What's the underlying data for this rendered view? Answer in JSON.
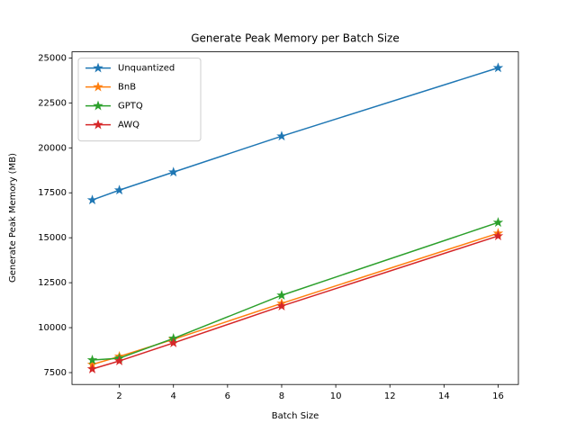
{
  "chart_data": {
    "type": "line",
    "title": "Generate Peak Memory per Batch Size",
    "x_label": "Batch Size",
    "y_label": "Generate Peak Memory (MB)",
    "x": [
      1,
      2,
      4,
      8,
      16
    ],
    "series": [
      {
        "name": "Unquantized",
        "color": "#1f77b4",
        "values": [
          17100,
          17650,
          18650,
          20650,
          24450
        ]
      },
      {
        "name": "BnB",
        "color": "#ff7f0e",
        "values": [
          7950,
          8400,
          9350,
          11350,
          15250
        ]
      },
      {
        "name": "GPTQ",
        "color": "#2ca02c",
        "values": [
          8200,
          8300,
          9400,
          11800,
          15850
        ]
      },
      {
        "name": "AWQ",
        "color": "#d62728",
        "values": [
          7700,
          8150,
          9150,
          11200,
          15100
        ]
      }
    ],
    "xlim": [
      0.25,
      16.75
    ],
    "ylim": [
      6840,
      25340
    ],
    "xticks": [
      2,
      4,
      6,
      8,
      10,
      12,
      14,
      16
    ],
    "yticks": [
      7500,
      10000,
      12500,
      15000,
      17500,
      20000,
      22500,
      25000
    ],
    "legend": "upper left",
    "marker": "star"
  }
}
